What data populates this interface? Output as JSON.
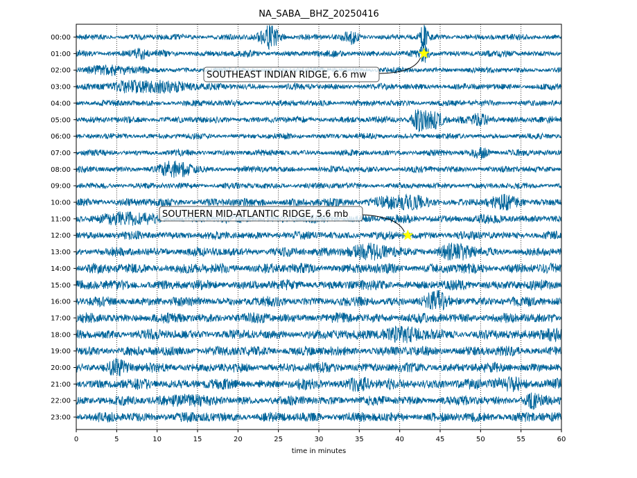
{
  "chart_data": {
    "type": "line",
    "title": "NA_SABA__BHZ_20250416",
    "xlabel": "time in minutes",
    "ylabel": "",
    "xlim": [
      0,
      60
    ],
    "xticks": [
      0,
      5,
      10,
      15,
      20,
      25,
      30,
      35,
      40,
      45,
      50,
      55,
      60
    ],
    "grid": "vertical-dotted",
    "trace_color": "#00649a",
    "rows": [
      "00:00",
      "01:00",
      "02:00",
      "03:00",
      "04:00",
      "05:00",
      "06:00",
      "07:00",
      "08:00",
      "09:00",
      "10:00",
      "11:00",
      "12:00",
      "13:00",
      "14:00",
      "15:00",
      "16:00",
      "17:00",
      "18:00",
      "19:00",
      "20:00",
      "21:00",
      "22:00",
      "23:00"
    ],
    "events": [
      {
        "label": "SOUTHEAST INDIAN RIDGE, 6.6 mw",
        "row": "01:00",
        "minute": 43.0,
        "marker": "star",
        "marker_color": "#ffff00"
      },
      {
        "label": "SOUTHERN MID-ATLANTIC RIDGE, 5.6 mb",
        "row": "12:00",
        "minute": 41.0,
        "marker": "star",
        "marker_color": "#ffff00"
      }
    ]
  }
}
